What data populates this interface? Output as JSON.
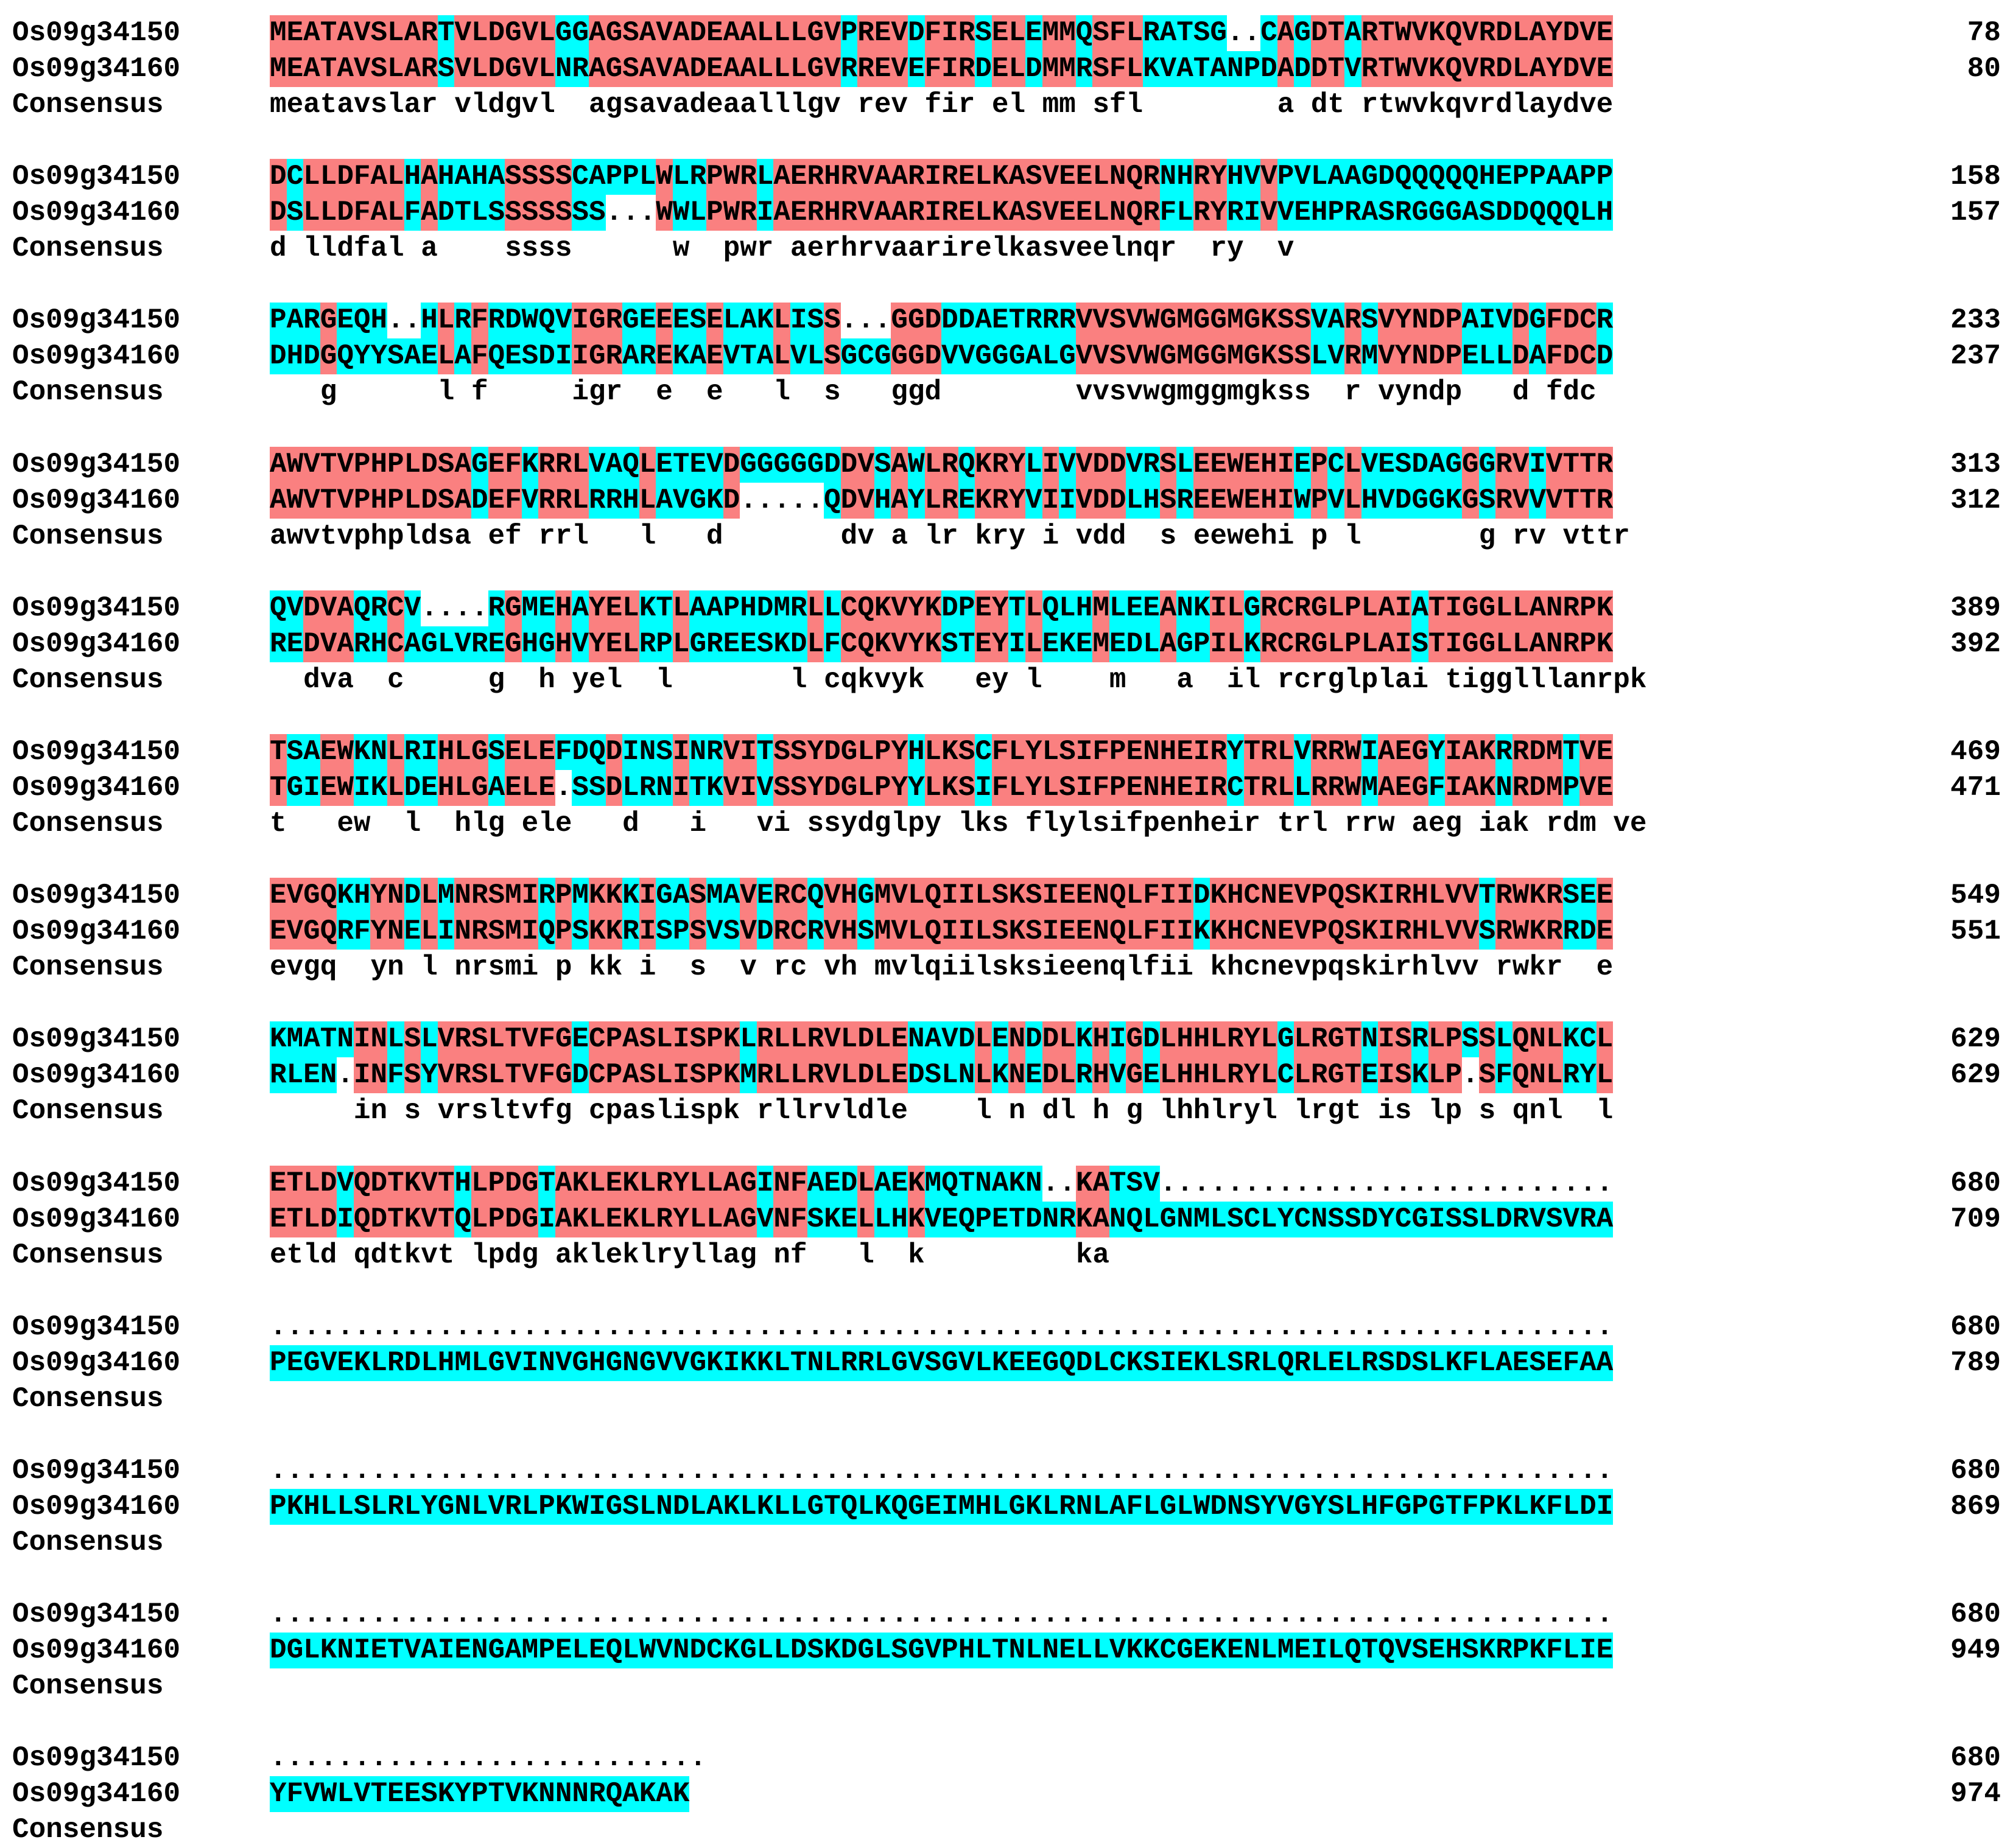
{
  "colors": {
    "identical": "#fa8080",
    "similar": "#00ffff"
  },
  "blocks": [
    {
      "rows": [
        {
          "name": "Os09g34150",
          "seq": "MEATAVSLARTVLDGVLGGAGSAVADEAALLLGVPREVDFIRSELEMMQSFLRATSG..CAGDTARTWVKQVRDLAYDVE",
          "end": "78"
        },
        {
          "name": "Os09g34160",
          "seq": "MEATAVSLARSVLDGVLNRAGSAVADEAALLLGVRREVEFIRDELDMMRSFLKVATANPDADDTVRTWVKQVRDLAYDVE",
          "end": "80"
        },
        {
          "name": "Consensus",
          "seq": "meatavslar vldgvl  agsavadeaalllgv rev fir el mm sfl        a dt rtwvkqvrdlaydve",
          "end": ""
        }
      ]
    },
    {
      "rows": [
        {
          "name": "Os09g34150",
          "seq": "DCLLDFALHAHAHASSSSCAPPLWLRPWRLAERHRVAARIRELKASVEELNQRNHRYHVVPVLAAGDQQQQQHEPPAAPP",
          "end": "158"
        },
        {
          "name": "Os09g34160",
          "seq": "DSLLDFALFADTLSSSSSSS...WWLPWRIAERHRVAARIRELKASVEELNQRFLRYRIVVEHPRASRGGGASDDQQQLH",
          "end": "157"
        },
        {
          "name": "Consensus",
          "seq": "d lldfal a    ssss      w  pwr aerhrvaarirelkasveelnqr  ry  v                    ",
          "end": ""
        }
      ]
    },
    {
      "rows": [
        {
          "name": "Os09g34150",
          "seq": "PARGEQH..HLRFRDWQVIGRGEEESELAKLISS...GGDDDAETRRRVVSVWGMGGMGKSSVARSVYNDPAIVDGFDCR",
          "end": "233"
        },
        {
          "name": "Os09g34160",
          "seq": "DHDGQYYSAELAFQESDIIGRAREKAEVTALVLSGCGGGDVVGGGALGVVSVWGMGGMGKSSLVRMVYNDPELLDAFDCD",
          "end": "237"
        },
        {
          "name": "Consensus",
          "seq": "   g      l f     igr  e  e   l  s   ggd        vvsvwgmggmgkss  r vyndp   d fdc ",
          "end": ""
        }
      ]
    },
    {
      "rows": [
        {
          "name": "Os09g34150",
          "seq": "AWVTVPHPLDSAGEFKRRLVAQLETEVDGGGGGDDVSAWLRQKRYLIVVDDVRSLEEWEHIEPCLVESDAGGGRVIVTTR",
          "end": "313"
        },
        {
          "name": "Os09g34160",
          "seq": "AWVTVPHPLDSADEFVRRLRRHLAVGKD.....QDVHAYLREKRYVIIVDDLHSREEWEHIWPVLHVDGGKGSRVVVTTR",
          "end": "312"
        },
        {
          "name": "Consensus",
          "seq": "awvtvphpldsa ef rrl   l   d       dv a lr kry i vdd  s eewehi p l       g rv vttr",
          "end": ""
        }
      ]
    },
    {
      "rows": [
        {
          "name": "Os09g34150",
          "seq": "QVDVAQRCV....RGMEHAYELKTLAAPHDMRLLCQKVYKDPEYTLQLHMLEEANKILGRCRGLPLAIATIGGLLANRPK",
          "end": "389"
        },
        {
          "name": "Os09g34160",
          "seq": "REDVARHCAGLVREGHGHVYELRPLGREESKDLFCQKVYKSTEYILEKEMEDLAGPILKRCRGLPLAISTIGGLLANRPK",
          "end": "392"
        },
        {
          "name": "Consensus",
          "seq": "  dva  c     g  h yel  l       l cqkvyk   ey l    m   a  il rcrglplai tigglllanrpk",
          "end": ""
        }
      ]
    },
    {
      "rows": [
        {
          "name": "Os09g34150",
          "seq": "TSAEWKNLRIHLGSELEFDQDINSINRVITSSYDGLPYHLKSCFLYLSIFPENHEIRYTRLVRRWIAEGYIAKRRDMTVE",
          "end": "469"
        },
        {
          "name": "Os09g34160",
          "seq": "TGIEWIKLDEHLGAELE.SSDLRNITKVIVSSYDGLPYYLKSIFLYLSIFPENHEIRCTRLLRRWMAEGFIAKNRDMPVE",
          "end": "471"
        },
        {
          "name": "Consensus",
          "seq": "t   ew  l  hlg ele   d   i   vi ssydglpy lks flylsifpenheir trl rrw aeg iak rdm ve",
          "end": ""
        }
      ]
    },
    {
      "rows": [
        {
          "name": "Os09g34150",
          "seq": "EVGQKHYNDLMNRSMIRPMKKKIGASMAVERCQVHGMVLQIILSKSIEENQLFIIDKHCNEVPQSKIRHLVVTRWKRSEE",
          "end": "549"
        },
        {
          "name": "Os09g34160",
          "seq": "EVGQRFYNELINRSMIQPSKKRISPSVSVDRCRVHSMVLQIILSKSIEENQLFIIKKHCNEVPQSKIRHLVVSRWKRRDE",
          "end": "551"
        },
        {
          "name": "Consensus",
          "seq": "evgq  yn l nrsmi p kk i  s  v rc vh mvlqiilsksieenqlfii khcnevpqskirhlvv rwkr  e",
          "end": ""
        }
      ]
    },
    {
      "rows": [
        {
          "name": "Os09g34150",
          "seq": "KMATNINLSLVRSLTVFGECPASLISPKLRLLRVLDLENAVDLENDDLKHIGDLHHLRYLGLRGTNISRLPSSLQNLKCL",
          "end": "629"
        },
        {
          "name": "Os09g34160",
          "seq": "RLEN.INFSYVRSLTVFGDCPASLISPKMRLLRVLDLEDSLNLKNEDLRHVGELHHLRYLCLRGTEISKLP.SFQNLRYL",
          "end": "629"
        },
        {
          "name": "Consensus",
          "seq": "     in s vrsltvfg cpaslispk rllrvldle    l n dl h g lhhlryl lrgt is lp s qnl  l",
          "end": ""
        }
      ]
    },
    {
      "rows": [
        {
          "name": "Os09g34150",
          "seq": "ETLDVQDTKVTHLPDGTAKLEKLRYLLAGINFAEDLAEKMQTNAKN..KATSV...........................",
          "end": "680"
        },
        {
          "name": "Os09g34160",
          "seq": "ETLDIQDTKVTQLPDGIAKLEKLRYLLAGVNFSKELLHKVEQPETDNRKANQLGNMLSCLYCNSSDYCGISSLDRVSVRA",
          "end": "709"
        },
        {
          "name": "Consensus",
          "seq": "etld qdtkvt lpdg akleklryllag nf   l  k         ka                             ",
          "end": ""
        }
      ]
    },
    {
      "rows": [
        {
          "name": "Os09g34150",
          "seq": "................................................................................",
          "end": "680"
        },
        {
          "name": "Os09g34160",
          "seq": "PEGVEKLRDLHMLGVINVGHGNGVVGKIKKLTNLRRLGVSGVLKEEGQDLCKSIEKLSRLQRLELRSDSLKFLAESEFAA",
          "end": "789"
        },
        {
          "name": "Consensus",
          "seq": "",
          "end": ""
        }
      ]
    },
    {
      "rows": [
        {
          "name": "Os09g34150",
          "seq": "................................................................................",
          "end": "680"
        },
        {
          "name": "Os09g34160",
          "seq": "PKHLLSLRLYGNLVRLPKWIGSLNDLAKLKLLGTQLKQGEIMHLGKLRNLAFLGLWDNSYVGYSLHFGPGTFPKLKFLDI",
          "end": "869"
        },
        {
          "name": "Consensus",
          "seq": "",
          "end": ""
        }
      ]
    },
    {
      "rows": [
        {
          "name": "Os09g34150",
          "seq": "................................................................................",
          "end": "680"
        },
        {
          "name": "Os09g34160",
          "seq": "DGLKNIETVAIENGAMPELEQLWVNDCKGLLDSKDGLSGVPHLTNLNELLVKKCGEKENLMEILQTQVSEHSKRPKFLIE",
          "end": "949"
        },
        {
          "name": "Consensus",
          "seq": "",
          "end": ""
        }
      ]
    },
    {
      "rows": [
        {
          "name": "Os09g34150",
          "seq": "..........................",
          "end": "680"
        },
        {
          "name": "Os09g34160",
          "seq": "YFVWLVTEESKYPTVKNNNRQAKAK",
          "end": "974"
        },
        {
          "name": "Consensus",
          "seq": "",
          "end": ""
        }
      ]
    }
  ]
}
